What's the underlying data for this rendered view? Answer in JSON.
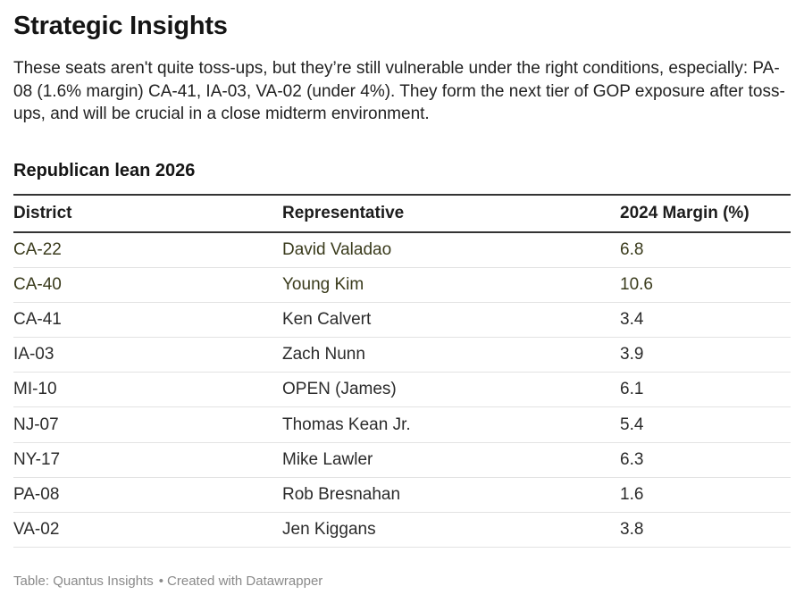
{
  "header": {
    "title": "Strategic Insights",
    "description": "These seats aren't quite toss-ups, but they’re still vulnerable under the right conditions, especially: PA-08 (1.6% margin) CA-41, IA-03, VA-02 (under 4%). They form the next tier of GOP exposure after toss-ups, and will be crucial in a close midterm environment."
  },
  "table": {
    "heading": "Republican lean 2026",
    "columns": {
      "district": "District",
      "representative": "Representative",
      "margin": "2024 Margin (%)"
    },
    "rows": [
      {
        "district": "CA-22",
        "representative": "David Valadao",
        "margin": "6.8"
      },
      {
        "district": "CA-40",
        "representative": "Young Kim",
        "margin": "10.6"
      },
      {
        "district": "CA-41",
        "representative": "Ken Calvert",
        "margin": "3.4"
      },
      {
        "district": "IA-03",
        "representative": "Zach Nunn",
        "margin": "3.9"
      },
      {
        "district": "MI-10",
        "representative": "OPEN (James)",
        "margin": "6.1"
      },
      {
        "district": "NJ-07",
        "representative": "Thomas Kean Jr.",
        "margin": "5.4"
      },
      {
        "district": "NY-17",
        "representative": "Mike Lawler",
        "margin": "6.3"
      },
      {
        "district": "PA-08",
        "representative": "Rob Bresnahan",
        "margin": "1.6"
      },
      {
        "district": "VA-02",
        "representative": "Jen Kiggans",
        "margin": "3.8"
      }
    ]
  },
  "footer": {
    "source": "Table: Quantus Insights",
    "separator": "•",
    "credit": "Created with Datawrapper"
  }
}
